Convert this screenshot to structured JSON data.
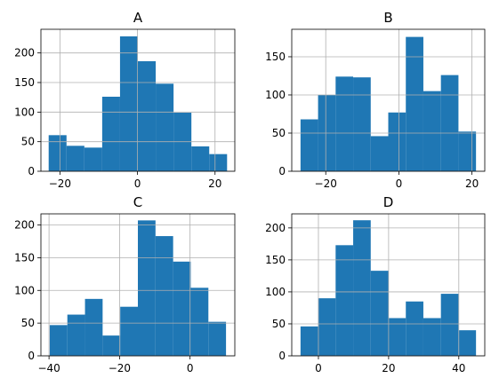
{
  "chart_data": [
    {
      "type": "bar",
      "title": "A",
      "bin_edges": [
        -22.9,
        -18.3,
        -13.7,
        -9.1,
        -4.5,
        0.1,
        4.7,
        9.3,
        13.9,
        18.5,
        23.1
      ],
      "values": [
        61,
        43,
        40,
        126,
        228,
        186,
        148,
        99,
        42,
        29
      ],
      "xlim": [
        -24.9,
        25.1
      ],
      "ylim": [
        0,
        240
      ],
      "xticks": [
        -20,
        0,
        20
      ],
      "xtick_labels": [
        "−20",
        "0",
        "20"
      ],
      "yticks": [
        0,
        50,
        100,
        150,
        200
      ],
      "ytick_labels": [
        "0",
        "50",
        "100",
        "150",
        "200"
      ],
      "grid": true
    },
    {
      "type": "bar",
      "title": "B",
      "bin_edges": [
        -26.9,
        -22.1,
        -17.3,
        -12.5,
        -7.7,
        -2.9,
        1.9,
        6.7,
        11.5,
        16.3,
        21.1
      ],
      "values": [
        68,
        100,
        124,
        123,
        46,
        77,
        176,
        105,
        126,
        52
      ],
      "xlim": [
        -29.3,
        23.5
      ],
      "ylim": [
        0,
        186
      ],
      "xticks": [
        -20,
        0,
        20
      ],
      "xtick_labels": [
        "−20",
        "0",
        "20"
      ],
      "yticks": [
        0,
        50,
        100,
        150
      ],
      "ytick_labels": [
        "0",
        "50",
        "100",
        "150"
      ],
      "grid": true
    },
    {
      "type": "bar",
      "title": "C",
      "bin_edges": [
        -39.8,
        -34.8,
        -29.8,
        -24.8,
        -19.8,
        -14.8,
        -9.8,
        -4.8,
        0.2,
        5.2,
        10.2
      ],
      "values": [
        47,
        63,
        87,
        31,
        75,
        207,
        183,
        144,
        104,
        52
      ],
      "xlim": [
        -42.3,
        12.7
      ],
      "ylim": [
        0,
        217
      ],
      "xticks": [
        -40,
        -20,
        0
      ],
      "xtick_labels": [
        "−40",
        "−20",
        "0"
      ],
      "yticks": [
        0,
        50,
        100,
        150,
        200
      ],
      "ytick_labels": [
        "0",
        "50",
        "100",
        "150",
        "200"
      ],
      "grid": true
    },
    {
      "type": "bar",
      "title": "D",
      "bin_edges": [
        -5.1,
        -0.1,
        4.9,
        9.9,
        14.9,
        19.9,
        24.9,
        29.9,
        34.9,
        39.9,
        44.9
      ],
      "values": [
        46,
        90,
        173,
        212,
        133,
        59,
        85,
        59,
        97,
        40
      ],
      "xlim": [
        -7.6,
        47.4
      ],
      "ylim": [
        0,
        222
      ],
      "xticks": [
        0,
        20,
        40
      ],
      "xtick_labels": [
        "0",
        "20",
        "40"
      ],
      "yticks": [
        0,
        50,
        100,
        150,
        200
      ],
      "ytick_labels": [
        "0",
        "50",
        "100",
        "150",
        "200"
      ],
      "grid": true
    }
  ]
}
